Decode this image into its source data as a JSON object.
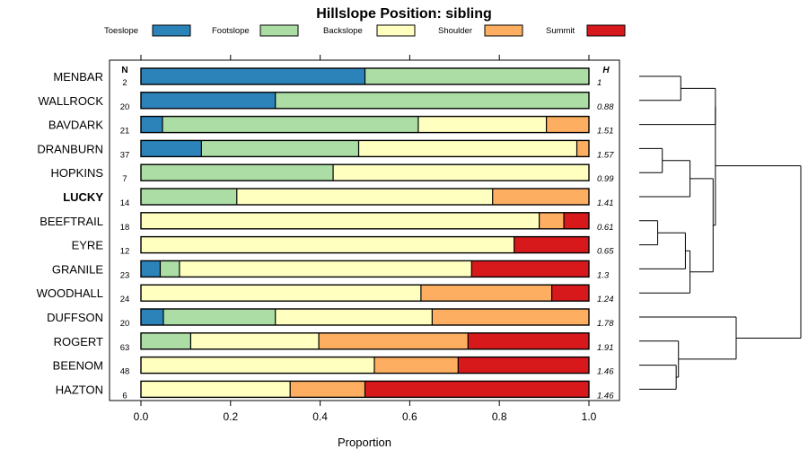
{
  "chart_data": {
    "type": "bar",
    "orientation": "horizontal-stacked",
    "title": "Hillslope Position: sibling",
    "xlabel": "Proportion",
    "xlim": [
      0,
      1
    ],
    "xticks": [
      "0.0",
      "0.2",
      "0.4",
      "0.6",
      "0.8",
      "1.0"
    ],
    "n_header": "N",
    "h_header": "H",
    "series": [
      {
        "name": "Toeslope",
        "color": "#2B83BA"
      },
      {
        "name": "Footslope",
        "color": "#ABDDA4"
      },
      {
        "name": "Backslope",
        "color": "#FFFFBF"
      },
      {
        "name": "Shoulder",
        "color": "#FDAE61"
      },
      {
        "name": "Summit",
        "color": "#D7191C"
      }
    ],
    "rows": [
      {
        "label": "MENBAR",
        "n": "2",
        "h": "1",
        "bold": false,
        "values": [
          0.5,
          0.5,
          0,
          0,
          0
        ]
      },
      {
        "label": "WALLROCK",
        "n": "20",
        "h": "0.88",
        "bold": false,
        "values": [
          0.3,
          0.7,
          0,
          0,
          0
        ]
      },
      {
        "label": "BAVDARK",
        "n": "21",
        "h": "1.51",
        "bold": false,
        "values": [
          0.048,
          0.571,
          0.286,
          0.095,
          0
        ]
      },
      {
        "label": "DRANBURN",
        "n": "37",
        "h": "1.57",
        "bold": false,
        "values": [
          0.135,
          0.351,
          0.487,
          0.027,
          0
        ]
      },
      {
        "label": "HOPKINS",
        "n": "7",
        "h": "0.99",
        "bold": false,
        "values": [
          0,
          0.429,
          0.571,
          0,
          0
        ]
      },
      {
        "label": "LUCKY",
        "n": "14",
        "h": "1.41",
        "bold": true,
        "values": [
          0,
          0.214,
          0.571,
          0.215,
          0
        ]
      },
      {
        "label": "BEEFTRAIL",
        "n": "18",
        "h": "0.61",
        "bold": false,
        "values": [
          0,
          0,
          0.889,
          0.055,
          0.056
        ]
      },
      {
        "label": "EYRE",
        "n": "12",
        "h": "0.65",
        "bold": false,
        "values": [
          0,
          0,
          0.833,
          0,
          0.167
        ]
      },
      {
        "label": "GRANILE",
        "n": "23",
        "h": "1.3",
        "bold": false,
        "values": [
          0.043,
          0.043,
          0.652,
          0,
          0.262
        ]
      },
      {
        "label": "WOODHALL",
        "n": "24",
        "h": "1.24",
        "bold": false,
        "values": [
          0,
          0,
          0.625,
          0.292,
          0.083
        ]
      },
      {
        "label": "DUFFSON",
        "n": "20",
        "h": "1.78",
        "bold": false,
        "values": [
          0.05,
          0.25,
          0.35,
          0.35,
          0
        ]
      },
      {
        "label": "ROGERT",
        "n": "63",
        "h": "1.91",
        "bold": false,
        "values": [
          0,
          0.111,
          0.286,
          0.333,
          0.27
        ]
      },
      {
        "label": "BEENOM",
        "n": "48",
        "h": "1.46",
        "bold": false,
        "values": [
          0,
          0,
          0.521,
          0.187,
          0.292
        ]
      },
      {
        "label": "HAZTON",
        "n": "6",
        "h": "1.46",
        "bold": false,
        "values": [
          0,
          0,
          0.333,
          0.167,
          0.5
        ]
      }
    ],
    "dendrogram": {
      "leaf_order": [
        "MENBAR",
        "WALLROCK",
        "BAVDARK",
        "DRANBURN",
        "HOPKINS",
        "LUCKY",
        "BEEFTRAIL",
        "EYRE",
        "GRANILE",
        "WOODHALL",
        "DUFFSON",
        "ROGERT",
        "BEENOM",
        "HAZTON"
      ],
      "merges": [
        {
          "a": "L0",
          "b": "L1",
          "height": 0.18
        },
        {
          "a": "L2",
          "b": "M0",
          "height": 0.33
        },
        {
          "a": "L3",
          "b": "L4",
          "height": 0.1
        },
        {
          "a": "M2",
          "b": "L5",
          "height": 0.22
        },
        {
          "a": "L6",
          "b": "L7",
          "height": 0.08
        },
        {
          "a": "M4",
          "b": "L8",
          "height": 0.2
        },
        {
          "a": "M5",
          "b": "L9",
          "height": 0.22
        },
        {
          "a": "M3",
          "b": "M6",
          "height": 0.32
        },
        {
          "a": "M1",
          "b": "M7",
          "height": 0.33
        },
        {
          "a": "L12",
          "b": "L13",
          "height": 0.16
        },
        {
          "a": "L11",
          "b": "M9",
          "height": 0.17
        },
        {
          "a": "L10",
          "b": "M10",
          "height": 0.42
        },
        {
          "a": "M8",
          "b": "M11",
          "height": 0.7
        }
      ],
      "max_height": 0.7
    }
  }
}
